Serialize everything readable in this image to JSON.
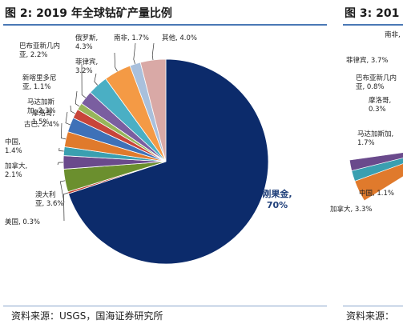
{
  "page": {
    "left_title": "图 2:  2019 年全球钴矿产量比例",
    "right_title": "图 3:  201",
    "left_source": "资料来源：USGS，国海证券研究所",
    "right_source": "资料来源："
  },
  "chart_data": [
    {
      "type": "pie",
      "title": "图 2:  2019 年全球钴矿产量比例",
      "series": [
        {
          "values": [
            70,
            0.3,
            3.6,
            2.1,
            1.4,
            2.4,
            2.3,
            1.5,
            1.1,
            2.2,
            3.2,
            4.3,
            1.7,
            4.0
          ],
          "labels": [
            [
              "刚果金,",
              "70%"
            ],
            [
              "美国, 0.3%"
            ],
            [
              "澳大利",
              "亚, 3.6%"
            ],
            [
              "加拿大,",
              "2.1%"
            ],
            [
              "中国,",
              "1.4%"
            ],
            [
              "古巴, 2.4%"
            ],
            [
              "马达加斯",
              "加, 2.3%"
            ],
            [
              "摩洛哥,",
              "1.5%"
            ],
            [
              "新喀里多尼",
              "亚, 1.1%"
            ],
            [
              "巴布亚新几内",
              "亚, 2.2%"
            ],
            [
              "菲律宾,",
              "3.2%"
            ],
            [
              "俄罗斯,",
              "4.3%"
            ],
            [
              "南非, 1.7%"
            ],
            [
              "其他, 4.0%"
            ]
          ],
          "colors": [
            "#0c2b6b",
            "#c0392b",
            "#6b8f2e",
            "#6a4a8c",
            "#3a9fb0",
            "#e07a2c",
            "#3e71b8",
            "#c8453a",
            "#97b55a",
            "#7a5ea0",
            "#4aafc4",
            "#f49a45",
            "#a9c0dc",
            "#d9a9a6"
          ]
        }
      ],
      "legend": "none",
      "start_angle_deg": 0,
      "direction": "clockwise"
    },
    {
      "type": "pie",
      "title": "图 3:  201",
      "partial": true,
      "series": [
        {
          "labels": [
            [
              "南非,"
            ],
            [
              "菲律宾, 3.7%"
            ],
            [
              "巴布亚新几内",
              "亚, 0.8%"
            ],
            [
              "摩洛哥,",
              "0.3%"
            ],
            [
              "马达加斯加,",
              "1.7%"
            ],
            [
              "中国, 1.1%"
            ],
            [
              "加拿大, 3.3%"
            ]
          ]
        }
      ]
    }
  ]
}
